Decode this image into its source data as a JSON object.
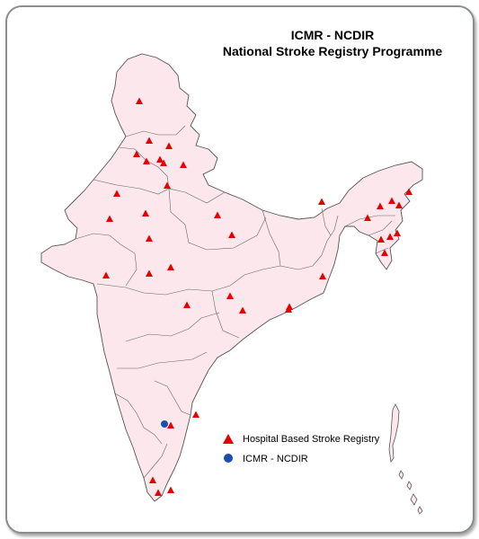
{
  "title": {
    "line1": "ICMR - NCDIR",
    "line2": "National Stroke Registry Programme"
  },
  "legend": [
    {
      "label": "Hospital Based Stroke Registry",
      "symbol": "red-triangle",
      "color": "#e60000"
    },
    {
      "label": "ICMR - NCDIR",
      "symbol": "blue-circle",
      "color": "#1a4fb0"
    }
  ],
  "colors": {
    "land_fill": "#fbe7ec",
    "border": "#555555",
    "registry_marker": "#e60000",
    "ncdir_marker": "#1a4fb0"
  }
}
